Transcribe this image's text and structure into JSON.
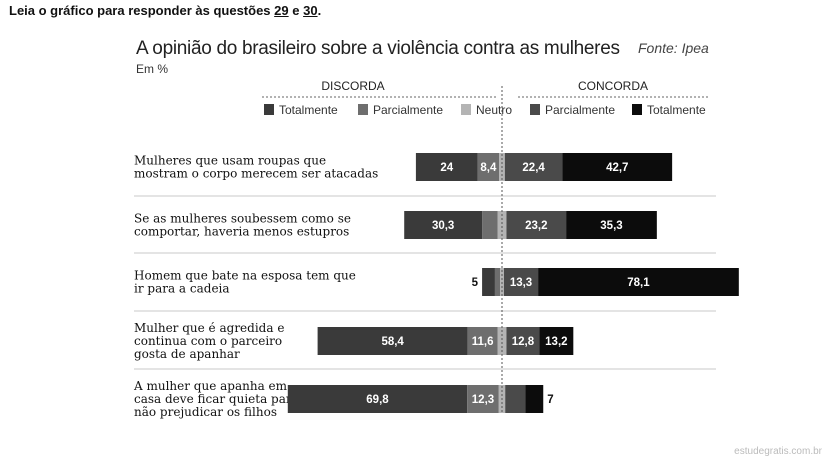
{
  "header": {
    "prefix": "Leia o gráfico para responder às questões ",
    "q1": "29",
    "conj": " e ",
    "q2": "30",
    "suffix": "."
  },
  "watermark": "estudegratis.com.br",
  "colors": {
    "disc_total": "#3a3a3a",
    "disc_parcial": "#6e6e6e",
    "neutro": "#b4b4b4",
    "conc_parcial": "#4a4a4a",
    "conc_total": "#0c0c0c"
  },
  "chart_data": {
    "type": "bar",
    "orientation": "horizontal-diverging-stacked",
    "title": "A opinião do brasileiro sobre a violência contra as mulheres",
    "source": "Fonte: Ipea",
    "subtitle": "Em %",
    "group_labels": {
      "left": "DISCORDA",
      "right": "CONCORDA"
    },
    "legend": [
      "Totalmente",
      "Parcialmente",
      "Neutro",
      "Parcialmente",
      "Totalmente"
    ],
    "categories": [
      [
        "Mulheres que usam roupas que",
        "mostram o corpo merecem ser atacadas"
      ],
      [
        "Se as mulheres soubessem como se",
        "comportar, haveria menos estupros"
      ],
      [
        "Homem que bate na esposa tem que",
        "ir para a cadeia"
      ],
      [
        "Mulher que é agredida e",
        "continua com o parceiro",
        "gosta de apanhar"
      ],
      [
        "A mulher que apanha em",
        "casa deve ficar quieta para",
        "não prejudicar os filhos"
      ]
    ],
    "series": [
      {
        "name": "Discorda totalmente",
        "values": [
          24,
          30.3,
          5,
          58.4,
          69.8
        ],
        "labels": [
          "24",
          "30,3",
          "5",
          "58,4",
          "69,8"
        ]
      },
      {
        "name": "Discorda parcialmente",
        "values": [
          8.4,
          6,
          2,
          11.6,
          12.3
        ],
        "labels": [
          "8,4",
          "",
          "",
          "11,6",
          "12,3"
        ]
      },
      {
        "name": "Neutro",
        "values": [
          2.2,
          3.5,
          1.5,
          3.5,
          2.5
        ],
        "labels": [
          "",
          "",
          "",
          "",
          ""
        ]
      },
      {
        "name": "Concorda parcialmente",
        "values": [
          22.4,
          23.2,
          13.3,
          12.8,
          7.8
        ],
        "labels": [
          "22,4",
          "23,2",
          "13,3",
          "12,8",
          ""
        ]
      },
      {
        "name": "Concorda totalmente",
        "values": [
          42.7,
          35.3,
          78.1,
          13.2,
          7
        ],
        "labels": [
          "42,7",
          "35,3",
          "78,1",
          "13,2",
          "7"
        ]
      }
    ]
  }
}
